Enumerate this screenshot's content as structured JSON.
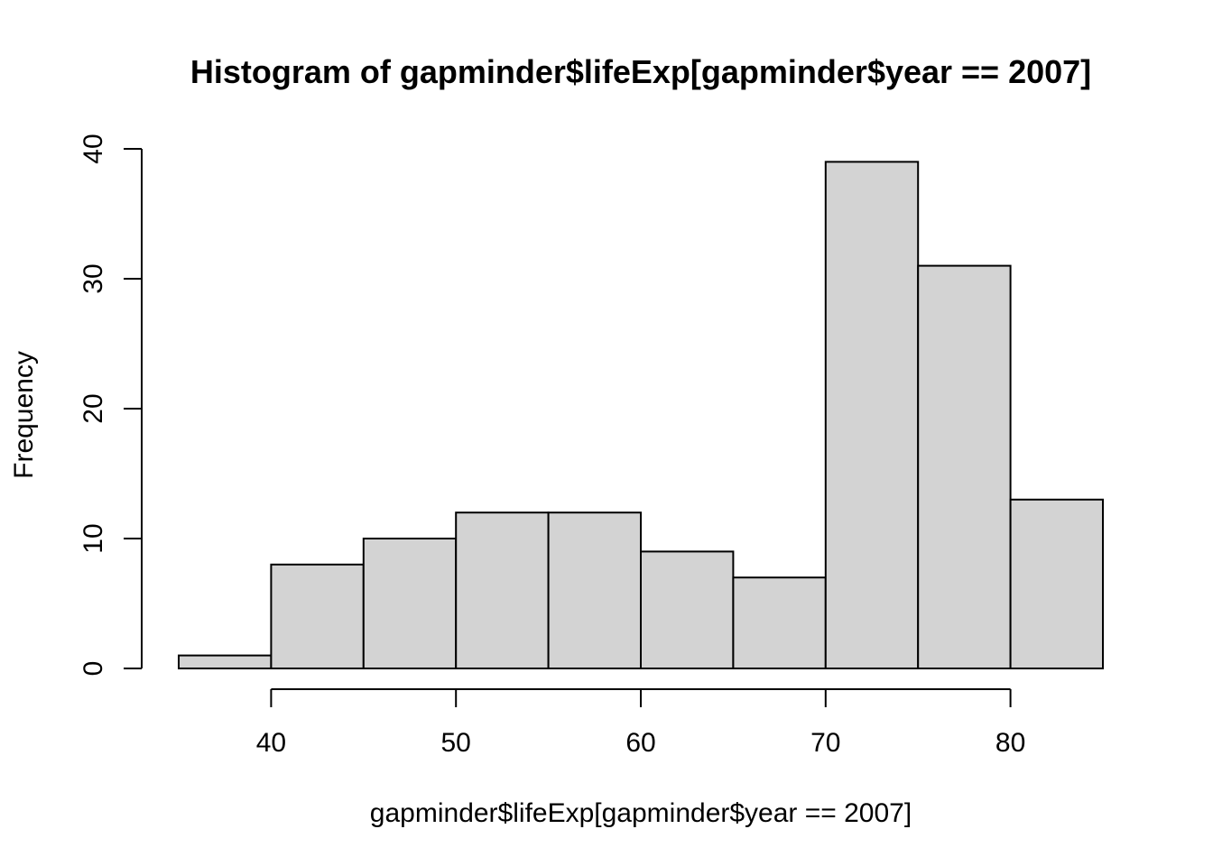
{
  "chart_data": {
    "type": "bar",
    "title": "Histogram of gapminder$lifeExp[gapminder$year == 2007]",
    "xlabel": "gapminder$lifeExp[gapminder$year == 2007]",
    "ylabel": "Frequency",
    "bins": [
      {
        "from": 35,
        "to": 40,
        "count": 1
      },
      {
        "from": 40,
        "to": 45,
        "count": 8
      },
      {
        "from": 45,
        "to": 50,
        "count": 10
      },
      {
        "from": 50,
        "to": 55,
        "count": 12
      },
      {
        "from": 55,
        "to": 60,
        "count": 12
      },
      {
        "from": 60,
        "to": 65,
        "count": 9
      },
      {
        "from": 65,
        "to": 70,
        "count": 7
      },
      {
        "from": 70,
        "to": 75,
        "count": 39
      },
      {
        "from": 75,
        "to": 80,
        "count": 31
      },
      {
        "from": 80,
        "to": 85,
        "count": 13
      }
    ],
    "xlim": [
      35,
      85
    ],
    "ylim": [
      0,
      40
    ],
    "x_ticks": [
      40,
      50,
      60,
      70,
      80
    ],
    "y_ticks": [
      0,
      10,
      20,
      30,
      40
    ],
    "bar_fill": "#d3d3d3",
    "bar_stroke": "#000000",
    "grid": false,
    "legend": "none"
  }
}
